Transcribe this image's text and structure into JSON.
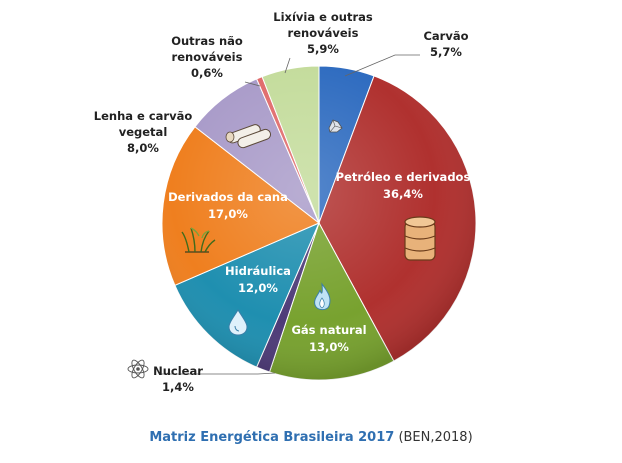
{
  "chart_data": {
    "type": "pie",
    "slices": [
      {
        "label": "Carvão",
        "value": 5.7,
        "value_label": "5,7%",
        "color": "#2f6cc0"
      },
      {
        "label": "Petróleo e derivados",
        "value": 36.4,
        "value_label": "36,4%",
        "color": "#b0312f"
      },
      {
        "label": "Gás natural",
        "value": 13.0,
        "value_label": "13,0%",
        "color": "#78a22f"
      },
      {
        "label": "Nuclear",
        "value": 1.4,
        "value_label": "1,4%",
        "color": "#4e3b78"
      },
      {
        "label": "Hidráulica",
        "value": 12.0,
        "value_label": "12,0%",
        "color": "#1f8fb0"
      },
      {
        "label": "Derivados da cana",
        "value": 17.0,
        "value_label": "17,0%",
        "color": "#ef7f1f"
      },
      {
        "label": "Lenha e carvão vegetal",
        "value": 8.0,
        "value_label": "8,0%",
        "color": "#a99bc9"
      },
      {
        "label": "Outras não renováveis",
        "value": 0.6,
        "value_label": "0,6%",
        "color": "#e06a6a"
      },
      {
        "label": "Lixívia e outras renováveis",
        "value": 5.9,
        "value_label": "5,9%",
        "color": "#c4dc9c"
      }
    ]
  },
  "caption": {
    "title": "Matriz Energética Brasileira 2017",
    "source": "(BEN,2018)"
  },
  "icons": [
    "coal-icon",
    "oil-barrel-icon",
    "gas-flame-icon",
    "water-drop-icon",
    "sugarcane-icon",
    "firewood-icon",
    "atom-icon"
  ]
}
